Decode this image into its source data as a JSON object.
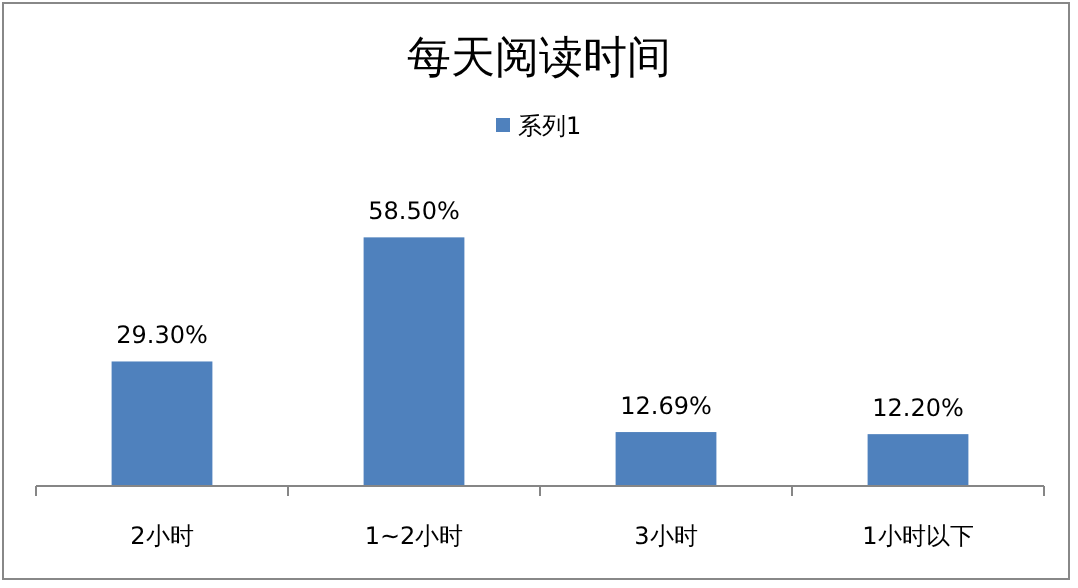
{
  "chart_data": {
    "type": "bar",
    "title": "每天阅读时间",
    "categories": [
      "2小时",
      "1~2小时",
      "3小时",
      "1小时以下"
    ],
    "series": [
      {
        "name": "系列1",
        "color": "#4f81bd",
        "values": [
          29.3,
          58.5,
          12.69,
          12.2
        ],
        "value_labels": [
          "29.30%",
          "58.50%",
          "12.69%",
          "12.20%"
        ]
      }
    ],
    "legend": "top"
  }
}
